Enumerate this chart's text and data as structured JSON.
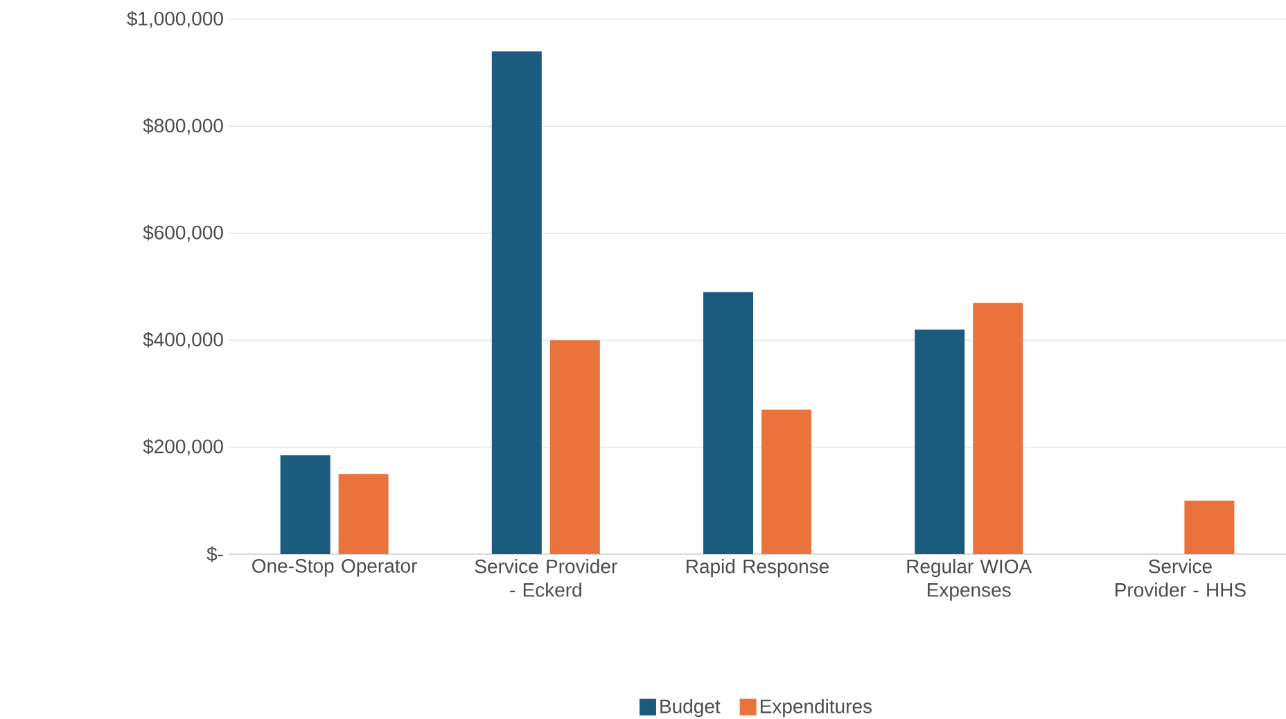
{
  "chart_data": {
    "type": "bar",
    "categories": [
      "One-Stop Operator",
      "Service Provider - Eckerd",
      "Rapid Response",
      "Regular WIOA Expenses",
      "Service Provider - HHS"
    ],
    "series": [
      {
        "name": "Budget",
        "color": "#1b5b7e",
        "values": [
          185000,
          940000,
          490000,
          420000,
          null
        ]
      },
      {
        "name": "Expenditures",
        "color": "#e9733a",
        "values": [
          150000,
          400000,
          270000,
          470000,
          100000
        ]
      }
    ],
    "ylim": [
      0,
      1000000
    ],
    "yticks": [
      {
        "value": 0,
        "label": "$-"
      },
      {
        "value": 200000,
        "label": "$200,000"
      },
      {
        "value": 400000,
        "label": "$400,000"
      },
      {
        "value": 600000,
        "label": "$600,000"
      },
      {
        "value": 800000,
        "label": "$800,000"
      },
      {
        "value": 1000000,
        "label": "$1,000,000"
      }
    ],
    "grid": "y",
    "legend": "bottom"
  }
}
